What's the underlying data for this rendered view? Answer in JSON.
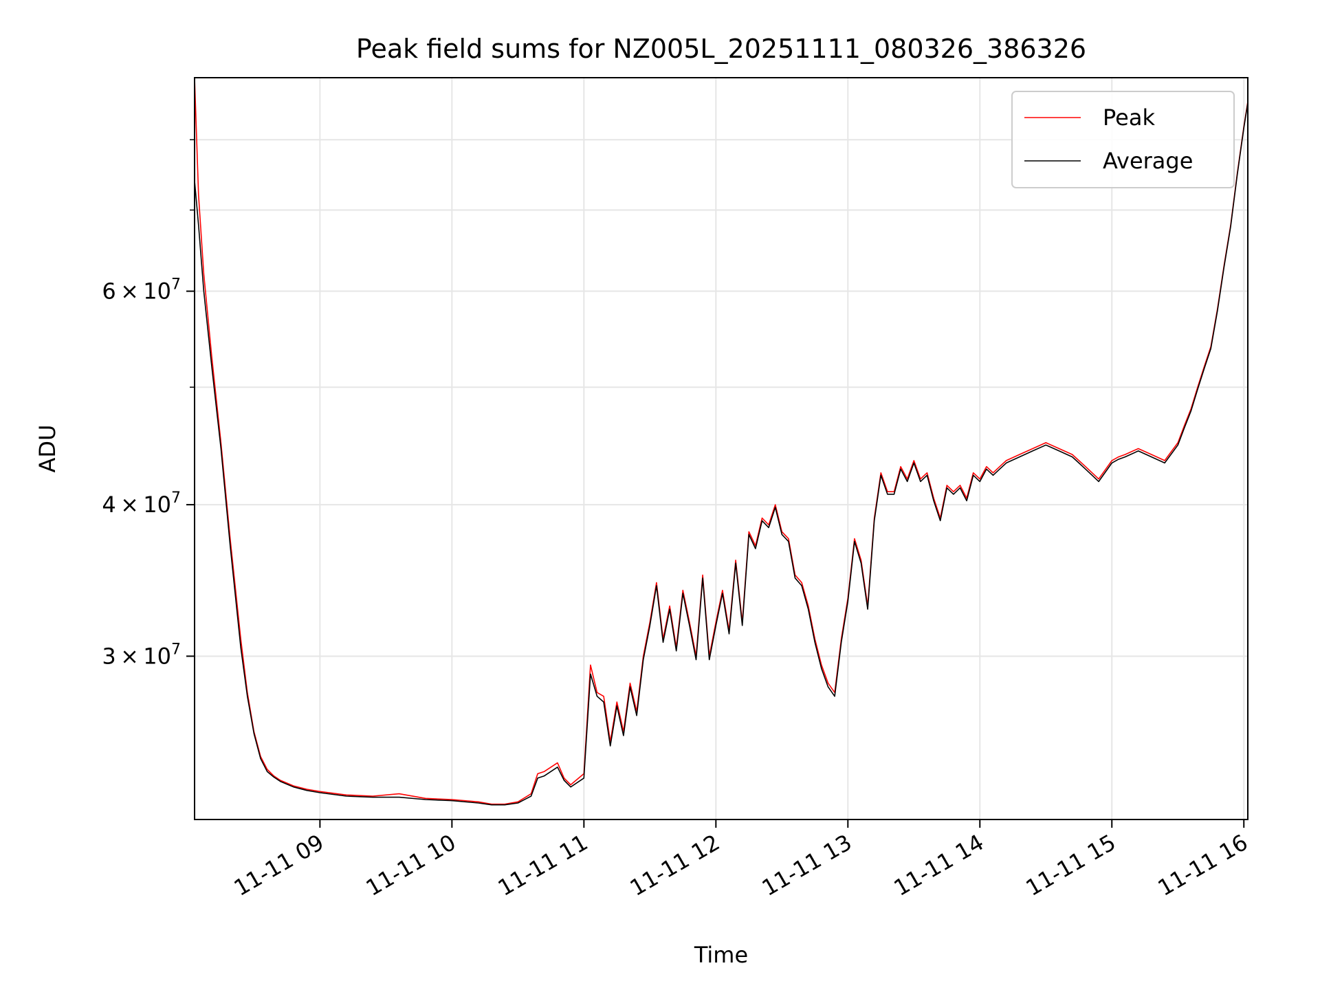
{
  "chart_data": {
    "type": "line",
    "title": "Peak field sums for NZ005L_20251111_080326_386326",
    "xlabel": "Time",
    "ylabel": "ADU",
    "x_unit": "hours (decimal, on 2025-11-11)",
    "xlim": [
      8.05,
      16.03
    ],
    "ylim": [
      22000000,
      90000000
    ],
    "y_scale": "log",
    "grid": true,
    "legend_position": "top-right",
    "x_ticks": [
      {
        "value": 9,
        "label": "11-11 09"
      },
      {
        "value": 10,
        "label": "11-11 10"
      },
      {
        "value": 11,
        "label": "11-11 11"
      },
      {
        "value": 12,
        "label": "11-11 12"
      },
      {
        "value": 13,
        "label": "11-11 13"
      },
      {
        "value": 14,
        "label": "11-11 14"
      },
      {
        "value": 15,
        "label": "11-11 15"
      },
      {
        "value": 16,
        "label": "11-11 16"
      }
    ],
    "y_major_ticks": [
      {
        "value": 30000000,
        "mant": "3",
        "exp": "7"
      },
      {
        "value": 40000000,
        "mant": "4",
        "exp": "7"
      },
      {
        "value": 60000000,
        "mant": "6",
        "exp": "7"
      }
    ],
    "y_minor_ticks": [
      50000000,
      70000000,
      80000000
    ],
    "base_label": "10",
    "times_symbol": "×",
    "series": [
      {
        "name": "Peak",
        "color": "#ff0000",
        "x": [
          8.05,
          8.08,
          8.12,
          8.18,
          8.25,
          8.32,
          8.4,
          8.45,
          8.5,
          8.55,
          8.6,
          8.65,
          8.7,
          8.8,
          8.9,
          9.0,
          9.2,
          9.4,
          9.6,
          9.8,
          10.0,
          10.2,
          10.3,
          10.4,
          10.5,
          10.6,
          10.65,
          10.7,
          10.8,
          10.85,
          10.9,
          11.0,
          11.05,
          11.1,
          11.15,
          11.2,
          11.25,
          11.3,
          11.35,
          11.4,
          11.45,
          11.5,
          11.55,
          11.6,
          11.65,
          11.7,
          11.75,
          11.8,
          11.85,
          11.9,
          11.95,
          12.0,
          12.05,
          12.1,
          12.15,
          12.2,
          12.25,
          12.3,
          12.35,
          12.4,
          12.45,
          12.5,
          12.55,
          12.6,
          12.65,
          12.7,
          12.75,
          12.8,
          12.85,
          12.9,
          12.95,
          13.0,
          13.05,
          13.1,
          13.15,
          13.2,
          13.25,
          13.3,
          13.35,
          13.4,
          13.45,
          13.5,
          13.55,
          13.6,
          13.65,
          13.7,
          13.75,
          13.8,
          13.85,
          13.9,
          13.95,
          14.0,
          14.05,
          14.1,
          14.15,
          14.2,
          14.3,
          14.4,
          14.5,
          14.6,
          14.7,
          14.75,
          14.8,
          14.85,
          14.9,
          15.0,
          15.05,
          15.1,
          15.2,
          15.3,
          15.4,
          15.5,
          15.55,
          15.6,
          15.65,
          15.7,
          15.75,
          15.8,
          15.85,
          15.9,
          15.95,
          16.0,
          16.03
        ],
        "values": [
          90000000,
          72000000,
          62000000,
          53000000,
          45000000,
          37500000,
          31000000,
          28000000,
          26000000,
          24800000,
          24200000,
          23900000,
          23700000,
          23450000,
          23300000,
          23200000,
          23050000,
          23000000,
          23100000,
          22900000,
          22850000,
          22750000,
          22650000,
          22650000,
          22750000,
          23100000,
          24000000,
          24100000,
          24500000,
          23800000,
          23500000,
          24000000,
          29500000,
          28000000,
          27800000,
          25500000,
          27500000,
          26000000,
          28500000,
          27000000,
          30000000,
          32000000,
          34500000,
          31000000,
          33000000,
          30500000,
          34000000,
          32000000,
          30000000,
          35000000,
          30000000,
          32000000,
          34000000,
          31500000,
          36000000,
          32000000,
          38000000,
          37000000,
          39000000,
          38500000,
          40000000,
          38000000,
          37500000,
          35000000,
          34500000,
          33000000,
          31000000,
          29500000,
          28500000,
          28000000,
          31000000,
          33500000,
          37500000,
          36000000,
          33000000,
          39000000,
          42500000,
          41000000,
          41000000,
          43000000,
          42000000,
          43500000,
          42000000,
          42500000,
          40500000,
          39000000,
          41500000,
          41000000,
          41500000,
          40500000,
          42500000,
          42000000,
          43000000,
          42500000,
          43000000,
          43500000,
          44000000,
          44500000,
          45000000,
          44500000,
          44000000,
          43500000,
          43000000,
          42500000,
          42000000,
          43500000,
          43800000,
          44000000,
          44500000,
          44000000,
          43500000,
          45000000,
          46500000,
          48000000,
          50000000,
          52000000,
          54000000,
          58000000,
          63000000,
          68000000,
          75000000,
          82000000,
          86000000
        ]
      },
      {
        "name": "Average",
        "color": "#000000",
        "x": [
          8.05,
          8.08,
          8.12,
          8.18,
          8.25,
          8.32,
          8.4,
          8.45,
          8.5,
          8.55,
          8.6,
          8.65,
          8.7,
          8.8,
          8.9,
          9.0,
          9.2,
          9.4,
          9.6,
          9.8,
          10.0,
          10.2,
          10.3,
          10.4,
          10.5,
          10.6,
          10.65,
          10.7,
          10.8,
          10.85,
          10.9,
          11.0,
          11.05,
          11.1,
          11.15,
          11.2,
          11.25,
          11.3,
          11.35,
          11.4,
          11.45,
          11.5,
          11.55,
          11.6,
          11.65,
          11.7,
          11.75,
          11.8,
          11.85,
          11.9,
          11.95,
          12.0,
          12.05,
          12.1,
          12.15,
          12.2,
          12.25,
          12.3,
          12.35,
          12.4,
          12.45,
          12.5,
          12.55,
          12.6,
          12.65,
          12.7,
          12.75,
          12.8,
          12.85,
          12.9,
          12.95,
          13.0,
          13.05,
          13.1,
          13.15,
          13.2,
          13.25,
          13.3,
          13.35,
          13.4,
          13.45,
          13.5,
          13.55,
          13.6,
          13.65,
          13.7,
          13.75,
          13.8,
          13.85,
          13.9,
          13.95,
          14.0,
          14.05,
          14.1,
          14.15,
          14.2,
          14.3,
          14.4,
          14.5,
          14.6,
          14.7,
          14.75,
          14.8,
          14.85,
          14.9,
          15.0,
          15.05,
          15.1,
          15.2,
          15.3,
          15.4,
          15.5,
          15.55,
          15.6,
          15.65,
          15.7,
          15.75,
          15.8,
          15.85,
          15.9,
          15.95,
          16.0,
          16.03
        ],
        "values": [
          74000000,
          68000000,
          60000000,
          52000000,
          44500000,
          37000000,
          30500000,
          27800000,
          25900000,
          24700000,
          24100000,
          23850000,
          23650000,
          23400000,
          23250000,
          23150000,
          23000000,
          22950000,
          22950000,
          22850000,
          22800000,
          22700000,
          22620000,
          22620000,
          22700000,
          23000000,
          23800000,
          23900000,
          24300000,
          23700000,
          23400000,
          23800000,
          29000000,
          27800000,
          27500000,
          25300000,
          27300000,
          25800000,
          28300000,
          26800000,
          29800000,
          31800000,
          34300000,
          30800000,
          32800000,
          30300000,
          33800000,
          31800000,
          29800000,
          34800000,
          29800000,
          31800000,
          33800000,
          31300000,
          35800000,
          31800000,
          37800000,
          36800000,
          38800000,
          38300000,
          39800000,
          37800000,
          37300000,
          34800000,
          34300000,
          32800000,
          30800000,
          29300000,
          28300000,
          27800000,
          30800000,
          33300000,
          37300000,
          35800000,
          32800000,
          38800000,
          42300000,
          40800000,
          40800000,
          42800000,
          41800000,
          43300000,
          41800000,
          42300000,
          40300000,
          38800000,
          41300000,
          40800000,
          41300000,
          40300000,
          42300000,
          41800000,
          42800000,
          42300000,
          42800000,
          43300000,
          43800000,
          44300000,
          44800000,
          44300000,
          43800000,
          43300000,
          42800000,
          42300000,
          41800000,
          43300000,
          43600000,
          43800000,
          44300000,
          43800000,
          43300000,
          44800000,
          46300000,
          47800000,
          49800000,
          51800000,
          53800000,
          57800000,
          62800000,
          67800000,
          74800000,
          81800000,
          85800000
        ]
      }
    ]
  }
}
